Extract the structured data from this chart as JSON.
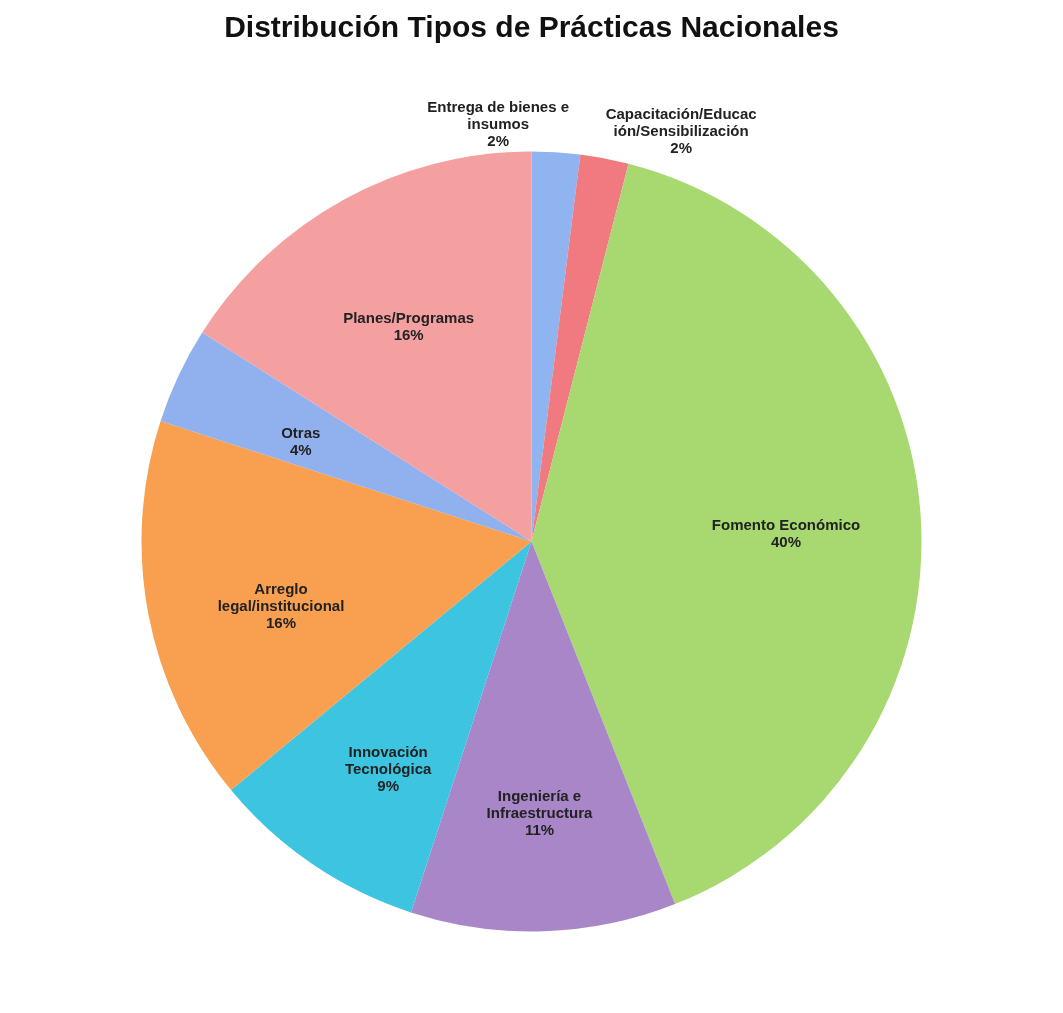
{
  "chart_data": {
    "type": "pie",
    "title": "Distribución Tipos de Prácticas Nacionales",
    "categories": [
      "Entrega de bienes e insumos",
      "Capacitación/Educación/Sensibilización",
      "Fomento Económico",
      "Ingeniería e Infraestructura",
      "Innovación Tecnológica",
      "Arreglo legal/institucional",
      "Otras",
      "Planes/Programas"
    ],
    "values": [
      2,
      2,
      40,
      11,
      9,
      16,
      4,
      16
    ],
    "value_labels": [
      "2%",
      "2%",
      "40%",
      "11%",
      "9%",
      "16%",
      "4%",
      "16%"
    ],
    "colors": [
      "#8fb4f0",
      "#f07a80",
      "#a8d870",
      "#a986c8",
      "#3cc4e0",
      "#f9a050",
      "#90b0ee",
      "#f4a0a0"
    ]
  }
}
